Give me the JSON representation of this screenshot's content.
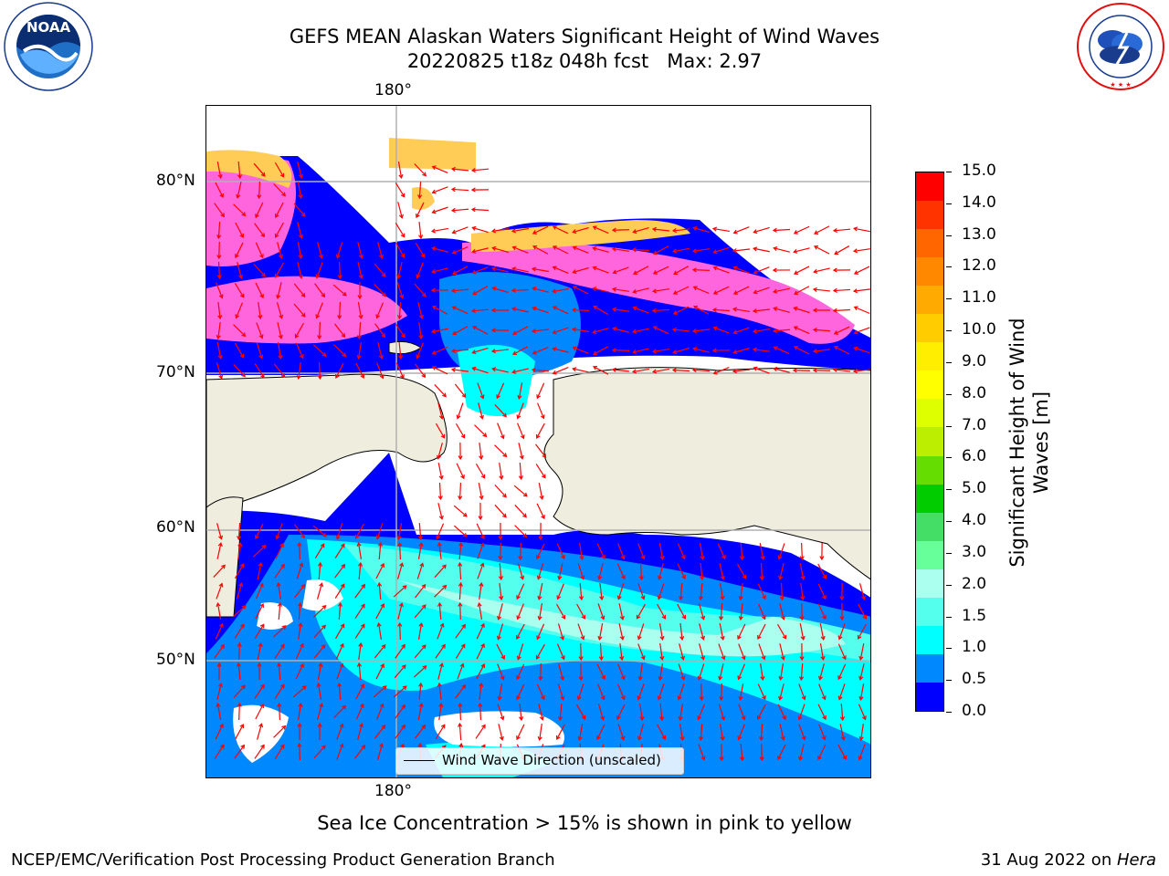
{
  "header": {
    "title_line1": "GEFS MEAN Alaskan Waters Significant Height of Wind Waves",
    "title_line2": "20220825 t18z 048h fcst   Max: 2.97"
  },
  "logos": {
    "noaa_text": "NOAA",
    "noaa_ring": "NATIONAL OCEANIC AND ATMOSPHERIC ADMINISTRATION · U.S. DEPARTMENT OF COMMERCE",
    "nws_ring": "NATIONAL WEATHER SERVICE"
  },
  "map": {
    "lon_label_top": "180°",
    "lon_label_bottom": "180°",
    "lat_labels": [
      "80°N",
      "70°N",
      "60°N",
      "50°N"
    ],
    "legend_label": "Wind Wave Direction (unscaled)",
    "colors": {
      "land": "#eeedde",
      "arrow": "#ff0000",
      "gridline": "#b0b0b0"
    }
  },
  "colorbar": {
    "label": "Significant Height of Wind Waves [m]",
    "ticks": [
      "15.0",
      "14.0",
      "13.0",
      "12.0",
      "11.0",
      "10.0",
      "9.0",
      "8.0",
      "7.0",
      "6.0",
      "5.0",
      "4.0",
      "3.0",
      "2.0",
      "1.5",
      "1.0",
      "0.5",
      "0.0"
    ],
    "colors_top_to_bottom": [
      "#ff0000",
      "#ff3300",
      "#ff6600",
      "#ff8800",
      "#ffaa00",
      "#ffcc00",
      "#ffee00",
      "#ffff00",
      "#ddff00",
      "#bbee00",
      "#66dd00",
      "#00cc00",
      "#44dd66",
      "#66ff99",
      "#aaffee",
      "#55ffee",
      "#00ffff",
      "#0088ff",
      "#0000ff"
    ]
  },
  "footer": {
    "ice_note": "Sea Ice Concentration > 15% is shown in pink to yellow",
    "credit": "NCEP/EMC/Verification Post Processing Product Generation Branch",
    "date_prefix": "31 Aug 2022 on ",
    "date_host": "Hera"
  }
}
